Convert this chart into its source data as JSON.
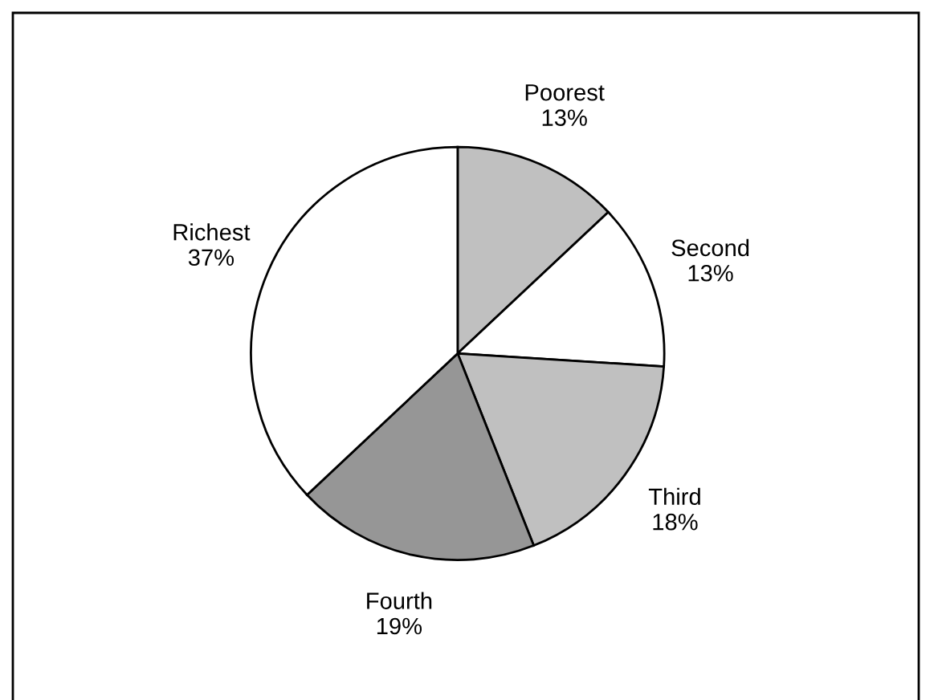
{
  "chart_data": {
    "type": "pie",
    "categories": [
      "Poorest",
      "Second",
      "Third",
      "Fourth",
      "Richest"
    ],
    "values": [
      13,
      13,
      18,
      19,
      37
    ],
    "value_labels": [
      "13%",
      "13%",
      "18%",
      "19%",
      "37%"
    ],
    "colors": [
      "#c0c0c0",
      "#ffffff",
      "#c0c0c0",
      "#969696",
      "#ffffff"
    ],
    "legend": false
  }
}
